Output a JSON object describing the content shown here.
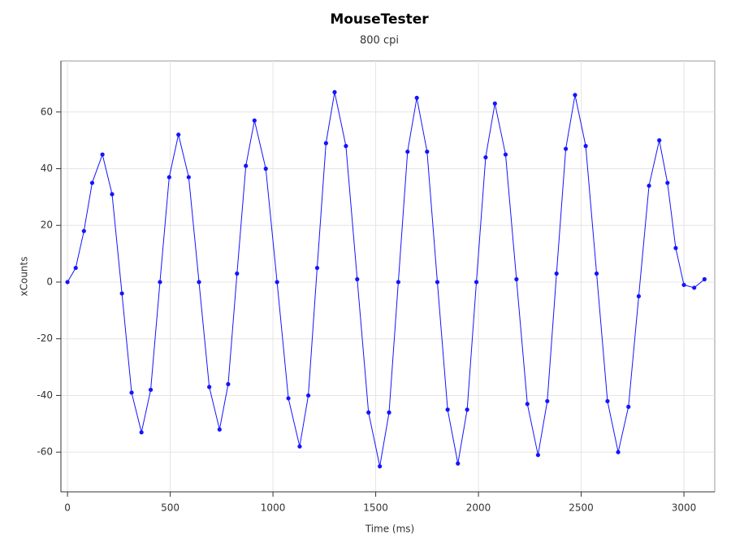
{
  "chart_data": {
    "type": "scatter",
    "title": "MouseTester",
    "subtitle": "800 cpi",
    "x_label": "Time (ms)",
    "y_label": "xCounts",
    "xlim": [
      -32,
      3150
    ],
    "ylim": [
      -74,
      78
    ],
    "xticks": [
      0,
      500,
      1000,
      1500,
      2000,
      2500,
      3000
    ],
    "yticks": [
      -60,
      -40,
      -20,
      0,
      20,
      40,
      60
    ],
    "grid": true,
    "line": true,
    "series": [
      {
        "color": "#1414ff",
        "x": [
          0,
          40,
          80,
          120,
          170,
          217,
          265,
          312,
          360,
          405,
          450,
          495,
          540,
          590,
          640,
          690,
          740,
          782,
          825,
          868,
          910,
          965,
          1020,
          1075,
          1130,
          1172,
          1215,
          1258,
          1300,
          1355,
          1410,
          1465,
          1520,
          1565,
          1610,
          1655,
          1700,
          1750,
          1800,
          1850,
          1900,
          1945,
          1990,
          2035,
          2080,
          2132,
          2185,
          2238,
          2290,
          2335,
          2380,
          2425,
          2470,
          2522,
          2575,
          2628,
          2680,
          2730,
          2780,
          2830,
          2880,
          2920,
          2960,
          3000,
          3050,
          3100
        ],
        "values": [
          0,
          5,
          18,
          35,
          45,
          31,
          -4,
          -39,
          -53,
          -38,
          0,
          37,
          52,
          37,
          0,
          -37,
          -52,
          -36,
          3,
          41,
          57,
          40,
          0,
          -41,
          -58,
          -40,
          5,
          49,
          67,
          48,
          1,
          -46,
          -65,
          -46,
          0,
          46,
          65,
          46,
          0,
          -45,
          -64,
          -45,
          0,
          44,
          63,
          45,
          1,
          -43,
          -61,
          -42,
          3,
          47,
          66,
          48,
          3,
          -42,
          -60,
          -44,
          -5,
          34,
          50,
          35,
          12,
          -1,
          -2,
          1
        ]
      }
    ]
  }
}
